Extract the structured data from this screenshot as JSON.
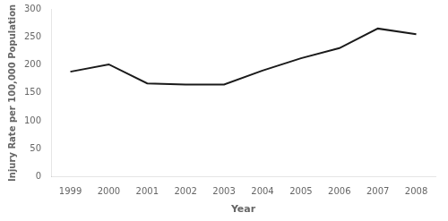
{
  "chart_data": {
    "type": "line",
    "x": [
      1999,
      2000,
      2001,
      2002,
      2003,
      2004,
      2005,
      2006,
      2007,
      2008
    ],
    "values": [
      188,
      201,
      167,
      165,
      165,
      190,
      212,
      230,
      265,
      255
    ],
    "xlabel": "Year",
    "ylabel": "Injury Rate per 100,000 Population",
    "xlim": [
      1998.5,
      2008.5
    ],
    "xticks": [
      1999,
      2000,
      2001,
      2002,
      2003,
      2004,
      2005,
      2006,
      2007,
      2008
    ],
    "ylim": [
      0,
      300
    ],
    "yticks": [
      0,
      50,
      100,
      150,
      200,
      250,
      300
    ],
    "color": "#1a1a1a",
    "grid": false
  }
}
